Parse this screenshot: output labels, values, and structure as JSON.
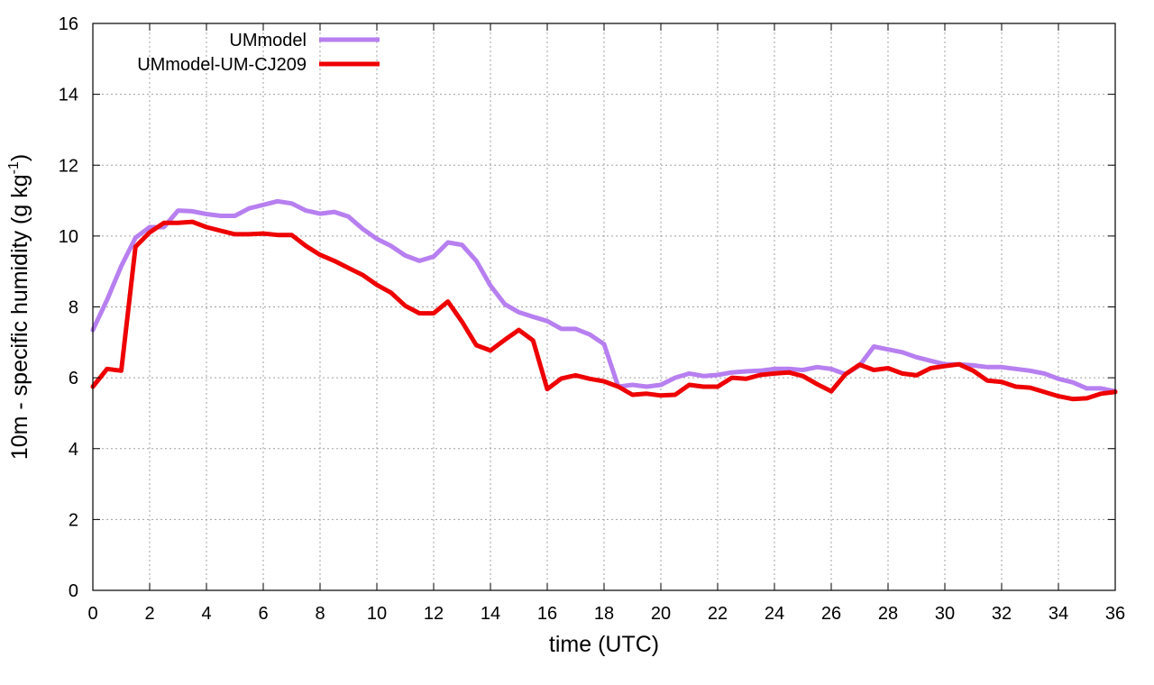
{
  "chart_data": {
    "type": "line",
    "xlabel": "time (UTC)",
    "ylabel": "10m - specific humidity (g kg",
    "ylabel_sup": "-1",
    "ylabel_tail": ")",
    "xlim": [
      0,
      36
    ],
    "ylim": [
      0,
      16
    ],
    "xticks": [
      0,
      2,
      4,
      6,
      8,
      10,
      12,
      14,
      16,
      18,
      20,
      22,
      24,
      26,
      28,
      30,
      32,
      34,
      36
    ],
    "yticks": [
      0,
      2,
      4,
      6,
      8,
      10,
      12,
      14,
      16
    ],
    "grid": true,
    "legend_position": "top-left",
    "series": [
      {
        "name": "UMmodel",
        "color": "#b77ff0",
        "x": [
          0,
          0.5,
          1,
          1.5,
          2,
          2.5,
          3,
          3.5,
          4,
          4.5,
          5,
          5.5,
          6,
          6.5,
          7,
          7.5,
          8,
          8.5,
          9,
          9.5,
          10,
          10.5,
          11,
          11.5,
          12,
          12.5,
          13,
          13.5,
          14,
          14.5,
          15,
          15.5,
          16,
          16.5,
          17,
          17.5,
          18,
          18.5,
          19,
          19.5,
          20,
          20.5,
          21,
          21.5,
          22,
          22.5,
          23,
          23.5,
          24,
          24.5,
          25,
          25.5,
          26,
          26.5,
          27,
          27.5,
          28,
          28.5,
          29,
          29.5,
          30,
          30.5,
          31,
          31.5,
          32,
          32.5,
          33,
          33.5,
          34,
          34.5,
          35,
          35.5,
          36
        ],
        "y": [
          7.35,
          8.2,
          9.15,
          9.95,
          10.25,
          10.25,
          10.72,
          10.7,
          10.62,
          10.57,
          10.57,
          10.78,
          10.88,
          10.98,
          10.92,
          10.72,
          10.63,
          10.68,
          10.55,
          10.2,
          9.92,
          9.72,
          9.45,
          9.3,
          9.42,
          9.82,
          9.75,
          9.3,
          8.6,
          8.08,
          7.85,
          7.72,
          7.6,
          7.38,
          7.38,
          7.22,
          6.95,
          5.75,
          5.8,
          5.75,
          5.8,
          6.0,
          6.12,
          6.05,
          6.08,
          6.15,
          6.18,
          6.2,
          6.25,
          6.25,
          6.22,
          6.3,
          6.25,
          6.1,
          6.35,
          6.88,
          6.8,
          6.72,
          6.58,
          6.48,
          6.38,
          6.38,
          6.35,
          6.3,
          6.3,
          6.25,
          6.2,
          6.12,
          5.97,
          5.87,
          5.7,
          5.7,
          5.62
        ]
      },
      {
        "name": "UMmodel-UM-CJ209",
        "color": "#ee0000",
        "x": [
          0,
          0.5,
          1,
          1.5,
          2,
          2.5,
          3,
          3.5,
          4,
          4.5,
          5,
          5.5,
          6,
          6.5,
          7,
          7.5,
          8,
          8.5,
          9,
          9.5,
          10,
          10.5,
          11,
          11.5,
          12,
          12.5,
          13,
          13.5,
          14,
          14.5,
          15,
          15.5,
          16,
          16.5,
          17,
          17.5,
          18,
          18.5,
          19,
          19.5,
          20,
          20.5,
          21,
          21.5,
          22,
          22.5,
          23,
          23.5,
          24,
          24.5,
          25,
          25.5,
          26,
          26.5,
          27,
          27.5,
          28,
          28.5,
          29,
          29.5,
          30,
          30.5,
          31,
          31.5,
          32,
          32.5,
          33,
          33.5,
          34,
          34.5,
          35,
          35.5,
          36
        ],
        "y": [
          5.75,
          6.25,
          6.2,
          9.7,
          10.1,
          10.37,
          10.37,
          10.4,
          10.25,
          10.15,
          10.05,
          10.05,
          10.07,
          10.03,
          10.03,
          9.72,
          9.47,
          9.3,
          9.1,
          8.9,
          8.62,
          8.4,
          8.03,
          7.82,
          7.82,
          8.15,
          7.58,
          6.92,
          6.77,
          7.07,
          7.35,
          7.05,
          5.68,
          5.98,
          6.07,
          5.97,
          5.9,
          5.75,
          5.52,
          5.55,
          5.5,
          5.52,
          5.8,
          5.75,
          5.75,
          6.0,
          5.97,
          6.08,
          6.12,
          6.15,
          6.05,
          5.82,
          5.62,
          6.1,
          6.37,
          6.22,
          6.27,
          6.12,
          6.07,
          6.27,
          6.33,
          6.38,
          6.2,
          5.92,
          5.88,
          5.75,
          5.72,
          5.6,
          5.48,
          5.4,
          5.42,
          5.55,
          5.6
        ]
      }
    ]
  }
}
